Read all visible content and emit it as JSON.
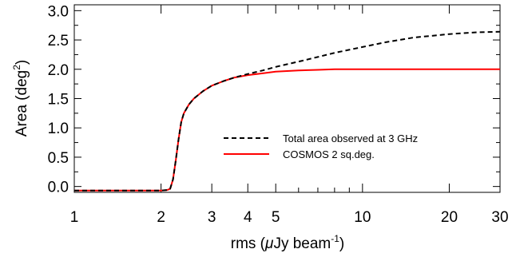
{
  "chart_data": {
    "type": "line",
    "title": "",
    "xlabel": {
      "main": "rms (",
      "mu": "μ",
      "unit": "Jy beam",
      "sup": "-1",
      "close": ")"
    },
    "ylabel": {
      "main": "Area (deg",
      "sup": "2",
      "close": ")"
    },
    "x_scale": "log",
    "xlim": [
      1,
      30
    ],
    "ylim": [
      -0.1,
      3.1
    ],
    "x_ticks": [
      1,
      2,
      3,
      4,
      5,
      10,
      20,
      30
    ],
    "x_tick_labels": [
      "1",
      "2",
      "3",
      "4",
      "5",
      "10",
      "20",
      "30"
    ],
    "y_ticks": [
      0.0,
      0.5,
      1.0,
      1.5,
      2.0,
      2.5,
      3.0
    ],
    "y_tick_labels": [
      "0.0",
      "0.5",
      "1.0",
      "1.5",
      "2.0",
      "2.5",
      "3.0"
    ],
    "grid": false,
    "legend_position": "center-right",
    "series": [
      {
        "name": "Total area observed at 3 GHz",
        "color": "#000000",
        "style": "dashed",
        "x": [
          1.0,
          1.5,
          2.0,
          2.1,
          2.15,
          2.2,
          2.25,
          2.3,
          2.35,
          2.4,
          2.5,
          2.6,
          2.8,
          3.0,
          3.3,
          3.6,
          4.0,
          4.5,
          5.0,
          6.0,
          7.0,
          8.0,
          10.0,
          12.0,
          15.0,
          20.0,
          25.0,
          30.0
        ],
        "y": [
          -0.07,
          -0.07,
          -0.07,
          -0.06,
          -0.04,
          0.12,
          0.45,
          0.8,
          1.1,
          1.25,
          1.4,
          1.5,
          1.63,
          1.72,
          1.8,
          1.86,
          1.92,
          1.98,
          2.04,
          2.13,
          2.21,
          2.28,
          2.38,
          2.46,
          2.54,
          2.6,
          2.63,
          2.64
        ]
      },
      {
        "name": "COSMOS 2 sq.deg.",
        "color": "#ff0000",
        "style": "solid",
        "x": [
          1.0,
          1.5,
          2.0,
          2.1,
          2.15,
          2.2,
          2.25,
          2.3,
          2.35,
          2.4,
          2.5,
          2.6,
          2.8,
          3.0,
          3.3,
          3.6,
          4.0,
          4.5,
          5.0,
          6.0,
          7.0,
          8.0,
          10.0,
          12.0,
          15.0,
          20.0,
          25.0,
          30.0
        ],
        "y": [
          -0.07,
          -0.07,
          -0.07,
          -0.06,
          -0.04,
          0.12,
          0.45,
          0.8,
          1.1,
          1.25,
          1.4,
          1.5,
          1.63,
          1.72,
          1.8,
          1.86,
          1.9,
          1.93,
          1.96,
          1.98,
          1.99,
          2.0,
          2.0,
          2.0,
          2.0,
          2.0,
          2.0,
          2.0
        ]
      }
    ]
  }
}
